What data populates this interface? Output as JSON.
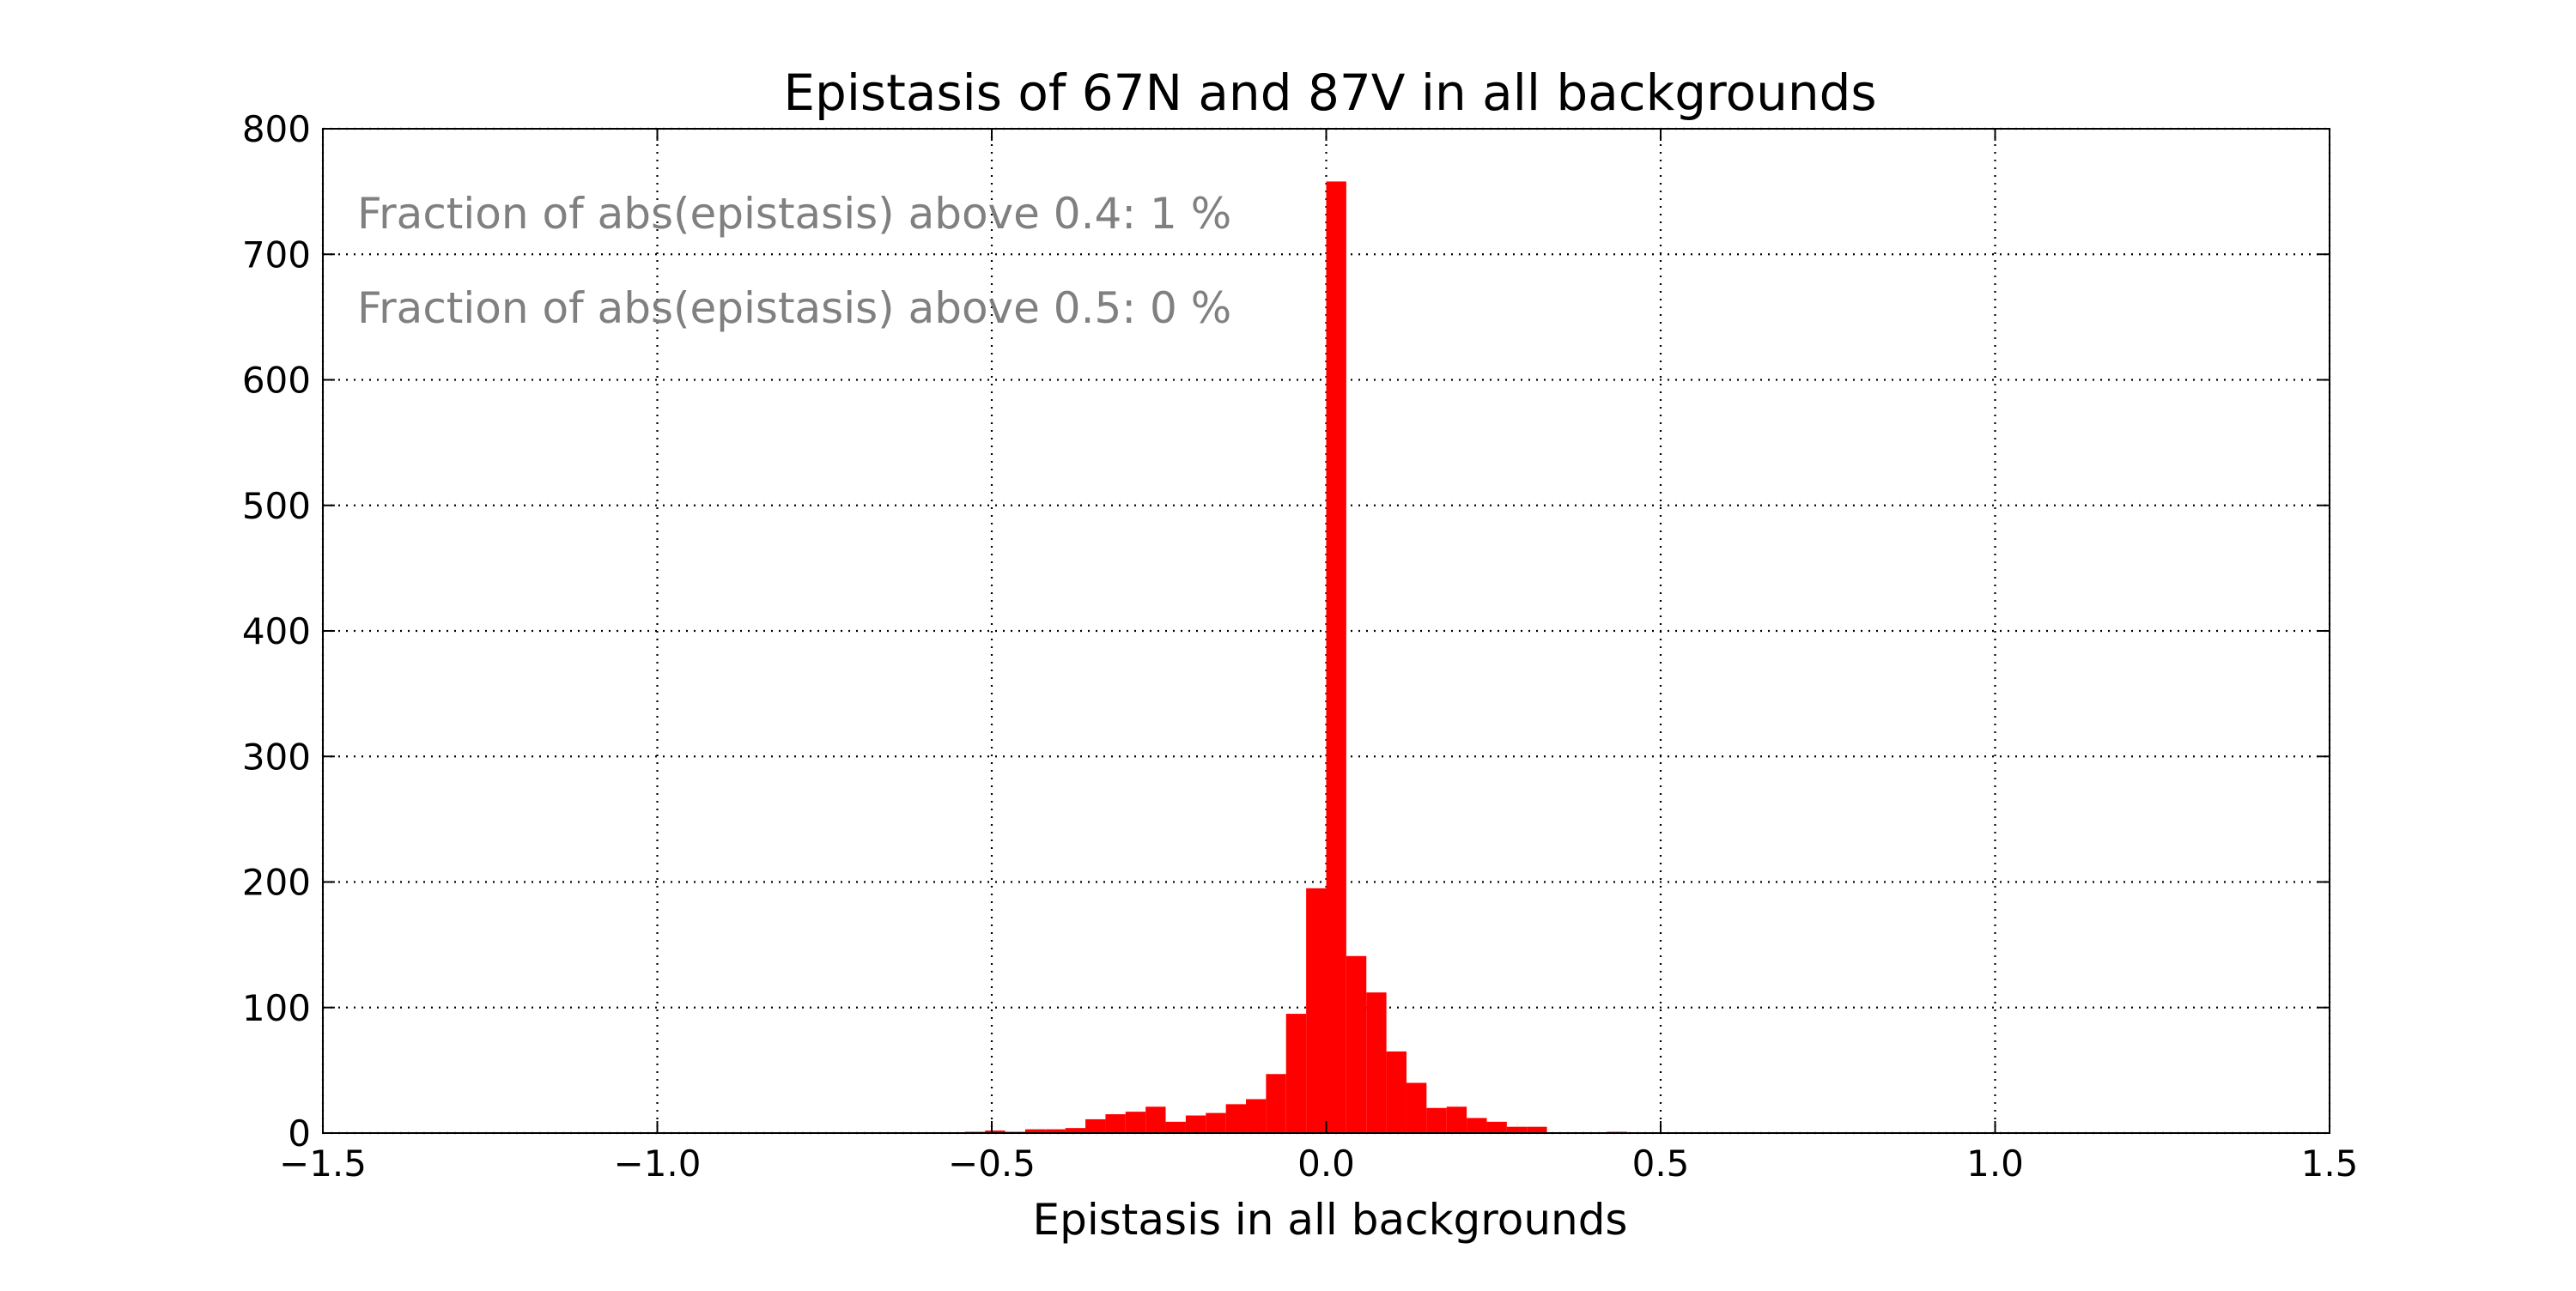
{
  "chart_data": {
    "type": "bar",
    "title": "Epistasis of 67N and 87V in all backgrounds",
    "xlabel": "Epistasis in all backgrounds",
    "ylabel": "",
    "xlim": [
      -1.5,
      1.5
    ],
    "ylim": [
      0,
      800
    ],
    "x_ticks": [
      -1.5,
      -1.0,
      -0.5,
      0.0,
      0.5,
      1.0,
      1.5
    ],
    "x_tick_labels": [
      "−1.5",
      "−1.0",
      "−0.5",
      "0.0",
      "0.5",
      "1.0",
      "1.5"
    ],
    "y_ticks": [
      0,
      100,
      200,
      300,
      400,
      500,
      600,
      700,
      800
    ],
    "y_tick_labels": [
      "0",
      "100",
      "200",
      "300",
      "400",
      "500",
      "600",
      "700",
      "800"
    ],
    "grid": true,
    "bar_color": "#ff0000",
    "annotations": [
      "Fraction of abs(epistasis) above 0.4: 1 %",
      "Fraction of abs(epistasis) above 0.5: 0 %"
    ],
    "annotation_color": "#808080",
    "bins": [
      {
        "x0": -0.54,
        "x1": -0.51,
        "count": 1
      },
      {
        "x0": -0.51,
        "x1": -0.48,
        "count": 2
      },
      {
        "x0": -0.48,
        "x1": -0.45,
        "count": 1
      },
      {
        "x0": -0.45,
        "x1": -0.42,
        "count": 3
      },
      {
        "x0": -0.42,
        "x1": -0.39,
        "count": 3
      },
      {
        "x0": -0.39,
        "x1": -0.36,
        "count": 4
      },
      {
        "x0": -0.36,
        "x1": -0.33,
        "count": 11
      },
      {
        "x0": -0.33,
        "x1": -0.3,
        "count": 15
      },
      {
        "x0": -0.3,
        "x1": -0.27,
        "count": 17
      },
      {
        "x0": -0.27,
        "x1": -0.24,
        "count": 21
      },
      {
        "x0": -0.24,
        "x1": -0.21,
        "count": 9
      },
      {
        "x0": -0.21,
        "x1": -0.18,
        "count": 14
      },
      {
        "x0": -0.18,
        "x1": -0.15,
        "count": 16
      },
      {
        "x0": -0.15,
        "x1": -0.12,
        "count": 23
      },
      {
        "x0": -0.12,
        "x1": -0.09,
        "count": 27
      },
      {
        "x0": -0.09,
        "x1": -0.06,
        "count": 47
      },
      {
        "x0": -0.06,
        "x1": -0.03,
        "count": 95
      },
      {
        "x0": -0.03,
        "x1": 0.0,
        "count": 195
      },
      {
        "x0": 0.0,
        "x1": 0.03,
        "count": 758
      },
      {
        "x0": 0.03,
        "x1": 0.06,
        "count": 141
      },
      {
        "x0": 0.06,
        "x1": 0.09,
        "count": 112
      },
      {
        "x0": 0.09,
        "x1": 0.12,
        "count": 65
      },
      {
        "x0": 0.12,
        "x1": 0.15,
        "count": 40
      },
      {
        "x0": 0.15,
        "x1": 0.18,
        "count": 20
      },
      {
        "x0": 0.18,
        "x1": 0.21,
        "count": 21
      },
      {
        "x0": 0.21,
        "x1": 0.24,
        "count": 12
      },
      {
        "x0": 0.24,
        "x1": 0.27,
        "count": 9
      },
      {
        "x0": 0.27,
        "x1": 0.3,
        "count": 5
      },
      {
        "x0": 0.3,
        "x1": 0.33,
        "count": 5
      },
      {
        "x0": 0.42,
        "x1": 0.45,
        "count": 1
      }
    ]
  }
}
